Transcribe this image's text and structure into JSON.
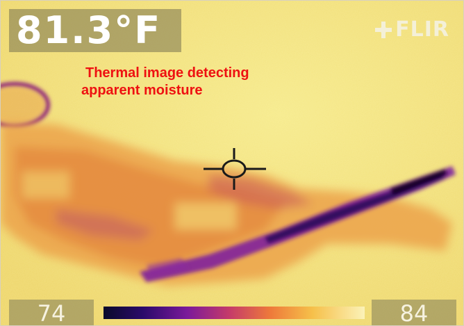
{
  "temperature": {
    "value": "81.3°F"
  },
  "brand": {
    "name": "FLIR",
    "icon": "flir-logo-icon"
  },
  "caption": {
    "line1": "Thermal image detecting",
    "line2": "apparent moisture"
  },
  "scale": {
    "min": "74",
    "max": "84"
  },
  "colors": {
    "background": "#f2e27a",
    "warm": "#ec9a3a",
    "cool": "#6a1a8a",
    "coldest": "#1a0a3a",
    "caption": "#ee1111"
  }
}
